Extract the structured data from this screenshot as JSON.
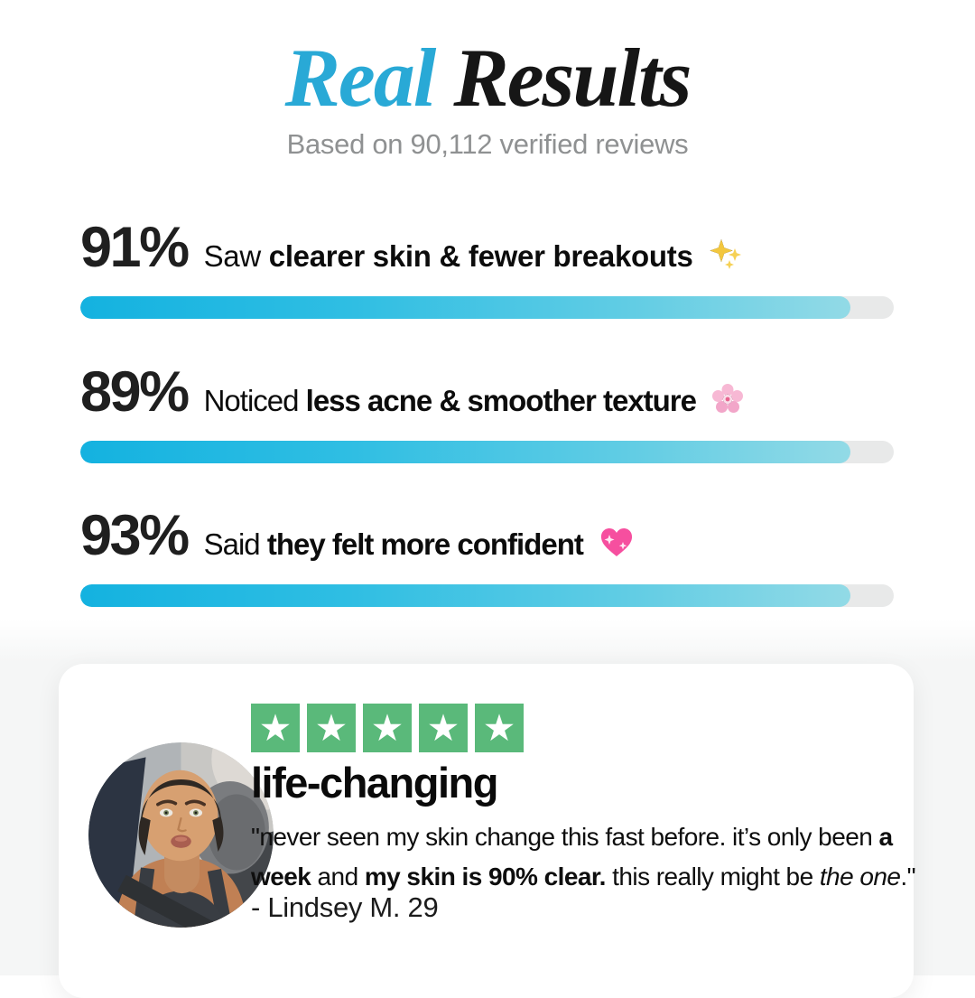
{
  "page": {
    "background": "#ffffff",
    "section_background": "#f5f6f6",
    "accent_blue": "#29a9d6"
  },
  "header": {
    "title_accent": "Real",
    "title_rest": " Results",
    "subtitle": "Based on 90,112 verified reviews"
  },
  "stats": [
    {
      "percent": "91%",
      "prefix": "Saw",
      "highlight": "clearer skin & fewer breakouts",
      "icon": "sparkles-icon",
      "fill_percent": 94.7
    },
    {
      "percent": "89%",
      "prefix": "Noticed",
      "highlight": "less acne & smoother texture",
      "icon": "cherry-blossom-icon",
      "fill_percent": 94.7
    },
    {
      "percent": "93%",
      "prefix": "Said",
      "highlight": "they felt more confident",
      "icon": "sparkling-heart-icon",
      "fill_percent": 94.7
    }
  ],
  "progress": {
    "track_color": "#e8e9e9",
    "fill_gradient_start": "#14b2e0",
    "fill_gradient_end": "#92dae6"
  },
  "review": {
    "star_count": 5,
    "star_color": "#5ab97a",
    "star_icon": "trustpilot-star-icon",
    "avatar": "woman-car-selfie-photo",
    "headline": "life-changing",
    "quote": [
      {
        "t": "\"never seen my skin change this fast before. it’s only been "
      },
      {
        "t": "a week"
      },
      {
        "t": " and "
      },
      {
        "t": "my skin is 90% clear."
      },
      {
        "t": " this really might be "
      },
      {
        "t": "the one"
      },
      {
        "t": ".\""
      }
    ],
    "attribution": "- Lindsey M. 29"
  }
}
